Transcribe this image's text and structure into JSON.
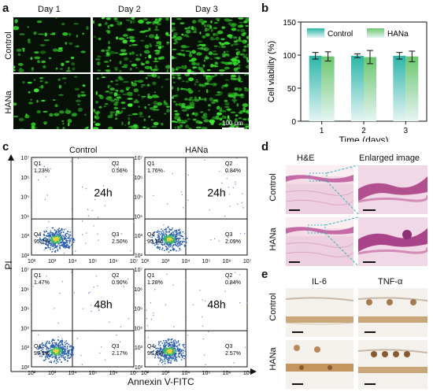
{
  "panel_a": {
    "label": "a",
    "columns": [
      "Day 1",
      "Day 2",
      "Day 3"
    ],
    "rows": [
      "Control",
      "HANa"
    ],
    "scale_bar": "100 μm"
  },
  "panel_b": {
    "label": "b",
    "legend": [
      "Control",
      "HANa"
    ],
    "colors": {
      "control": "#2bb5a8",
      "hana": "#6cc66e"
    }
  },
  "panel_c": {
    "label": "c",
    "columns": [
      "Control",
      "HANa"
    ],
    "rows": [
      "24h",
      "48h"
    ],
    "ylabel": "PI",
    "xlabel": "Annexin V-FITC",
    "tick_labels": [
      "10²",
      "10³",
      "10⁴",
      "10⁵",
      "10⁶",
      "10⁷"
    ],
    "x_ticks": [
      "10²",
      "10³",
      "10⁴",
      "10⁵",
      "10⁶",
      "10⁷"
    ],
    "plots": [
      {
        "group": "Control",
        "time": "24h",
        "q1": "1.23%",
        "q2": "0.56%",
        "q3": "2.50%",
        "q4": "95.7%"
      },
      {
        "group": "HANa",
        "time": "24h",
        "q1": "1.76%",
        "q2": "0.84%",
        "q3": "2.09%",
        "q4": "95.3%"
      },
      {
        "group": "Control",
        "time": "48h",
        "q1": "1.47%",
        "q2": "0.90%",
        "q3": "2.17%",
        "q4": "95.5%"
      },
      {
        "group": "HANa",
        "time": "48h",
        "q1": "1.28%",
        "q2": "0.84%",
        "q3": "2.57%",
        "q4": "95.3%"
      }
    ],
    "quadrant_names": [
      "Q1",
      "Q2",
      "Q3",
      "Q4"
    ]
  },
  "panel_d": {
    "label": "d",
    "columns": [
      "H&E",
      "Enlarged image"
    ],
    "rows": [
      "Control",
      "HANa"
    ]
  },
  "panel_e": {
    "label": "e",
    "columns": [
      "IL-6",
      "TNF-α"
    ],
    "rows": [
      "Control",
      "HANa"
    ]
  },
  "chart_data": {
    "type": "bar",
    "categories": [
      "1",
      "2",
      "3"
    ],
    "series": [
      {
        "name": "Control",
        "values": [
          99,
          99,
          99
        ],
        "errors": [
          5,
          3,
          5
        ]
      },
      {
        "name": "HANa",
        "values": [
          98,
          97,
          98
        ],
        "errors": [
          7,
          10,
          8
        ]
      }
    ],
    "xlabel": "Time (days)",
    "ylabel": "Cell viability (%)",
    "ylim": [
      0,
      150
    ],
    "yticks": [
      0,
      50,
      100,
      150
    ],
    "legend_placement": "top"
  }
}
